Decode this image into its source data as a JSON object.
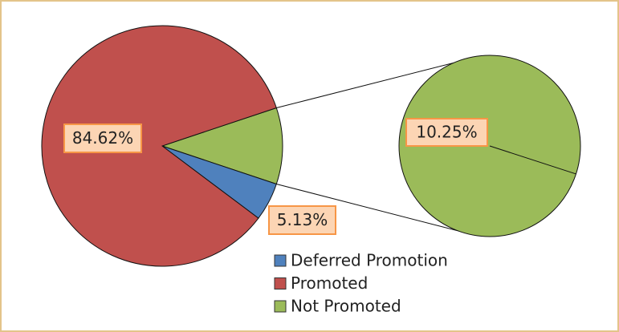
{
  "chart_data": {
    "type": "pie",
    "categories": [
      "Deferred Promotion",
      "Promoted",
      "Not Promoted"
    ],
    "values": [
      5.13,
      84.62,
      10.25
    ],
    "value_labels": [
      "5.13%",
      "84.62%",
      "10.25%"
    ],
    "colors": [
      "#4f81bd",
      "#c0504d",
      "#9bbb59"
    ]
  }
}
